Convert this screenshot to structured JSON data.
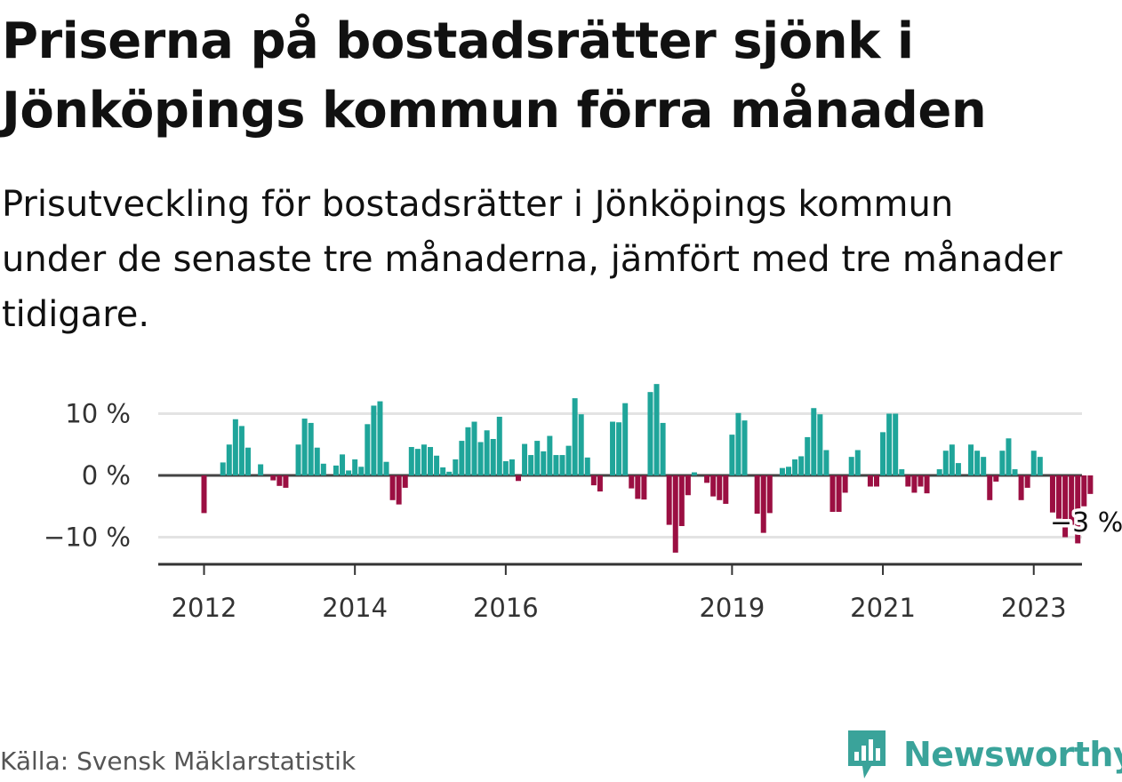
{
  "title": "Priserna på bostadsrätter sjönk i Jönköpings kommun förra månaden",
  "subtitle": "Prisutveckling för bostadsrätter i Jönköpings kommun under de senaste tre månaderna, jämfört med tre månader tidigare.",
  "source": "Källa: Svensk Mäklarstatistik",
  "brand": "Newsworthy",
  "colors": {
    "positive": "#1fa59a",
    "negative": "#9b0f42",
    "grid": "#e3e3e3",
    "axis": "#333333",
    "text": "#111111",
    "brand": "#3aa39a"
  },
  "chart_data": {
    "type": "bar",
    "unit": "%",
    "ylim": [
      -14,
      16
    ],
    "ytick_values": [
      -10,
      0,
      10
    ],
    "ytick_labels": [
      "−10 %",
      "0 %",
      "10 %"
    ],
    "xtick_indices": [
      0,
      24,
      48,
      84,
      108,
      132
    ],
    "xtick_labels": [
      "2012",
      "2014",
      "2016",
      "2019",
      "2021",
      "2023"
    ],
    "annotation": "−3 %",
    "annotation_index": 137,
    "values": [
      -6.1,
      0,
      0,
      2.1,
      5,
      9.1,
      8,
      4.5,
      0,
      1.8,
      0,
      -0.8,
      -1.7,
      -2,
      0,
      5,
      9.2,
      8.5,
      4.5,
      1.9,
      0,
      1.6,
      3.4,
      0.8,
      2.6,
      1.4,
      8.3,
      11.3,
      12.0,
      2.2,
      -4,
      -4.7,
      -2,
      4.6,
      4.3,
      5,
      4.6,
      3.2,
      1.3,
      0.6,
      2.6,
      5.6,
      7.8,
      8.7,
      5.4,
      7.3,
      5.9,
      9.5,
      2.3,
      2.6,
      -0.9,
      5.1,
      3.3,
      5.6,
      3.9,
      6.4,
      3.3,
      3.3,
      4.8,
      12.5,
      9.9,
      2.9,
      -1.6,
      -2.6,
      0,
      8.7,
      8.6,
      11.7,
      -2.1,
      -3.8,
      -3.9,
      13.5,
      14.8,
      8.5,
      -8,
      -12.5,
      -8.2,
      -3.2,
      0.5,
      0,
      -1.2,
      -3.4,
      -4,
      -4.6,
      6.6,
      10.1,
      8.9,
      0,
      -6.2,
      -9.3,
      -6.1,
      0,
      1.2,
      1.4,
      2.6,
      3.1,
      6.2,
      10.9,
      9.9,
      4.1,
      -5.9,
      -5.9,
      -2.8,
      3,
      4.1,
      0,
      -1.8,
      -1.8,
      7,
      10,
      10,
      1,
      -1.8,
      -2.8,
      -1.8,
      -2.9,
      0,
      1,
      4,
      5,
      2,
      0,
      5,
      4,
      3,
      -4,
      -1,
      4,
      6,
      1,
      -4,
      -2,
      4,
      3,
      0,
      -6,
      -7,
      -10,
      -8,
      -11,
      -5,
      -3
    ]
  }
}
